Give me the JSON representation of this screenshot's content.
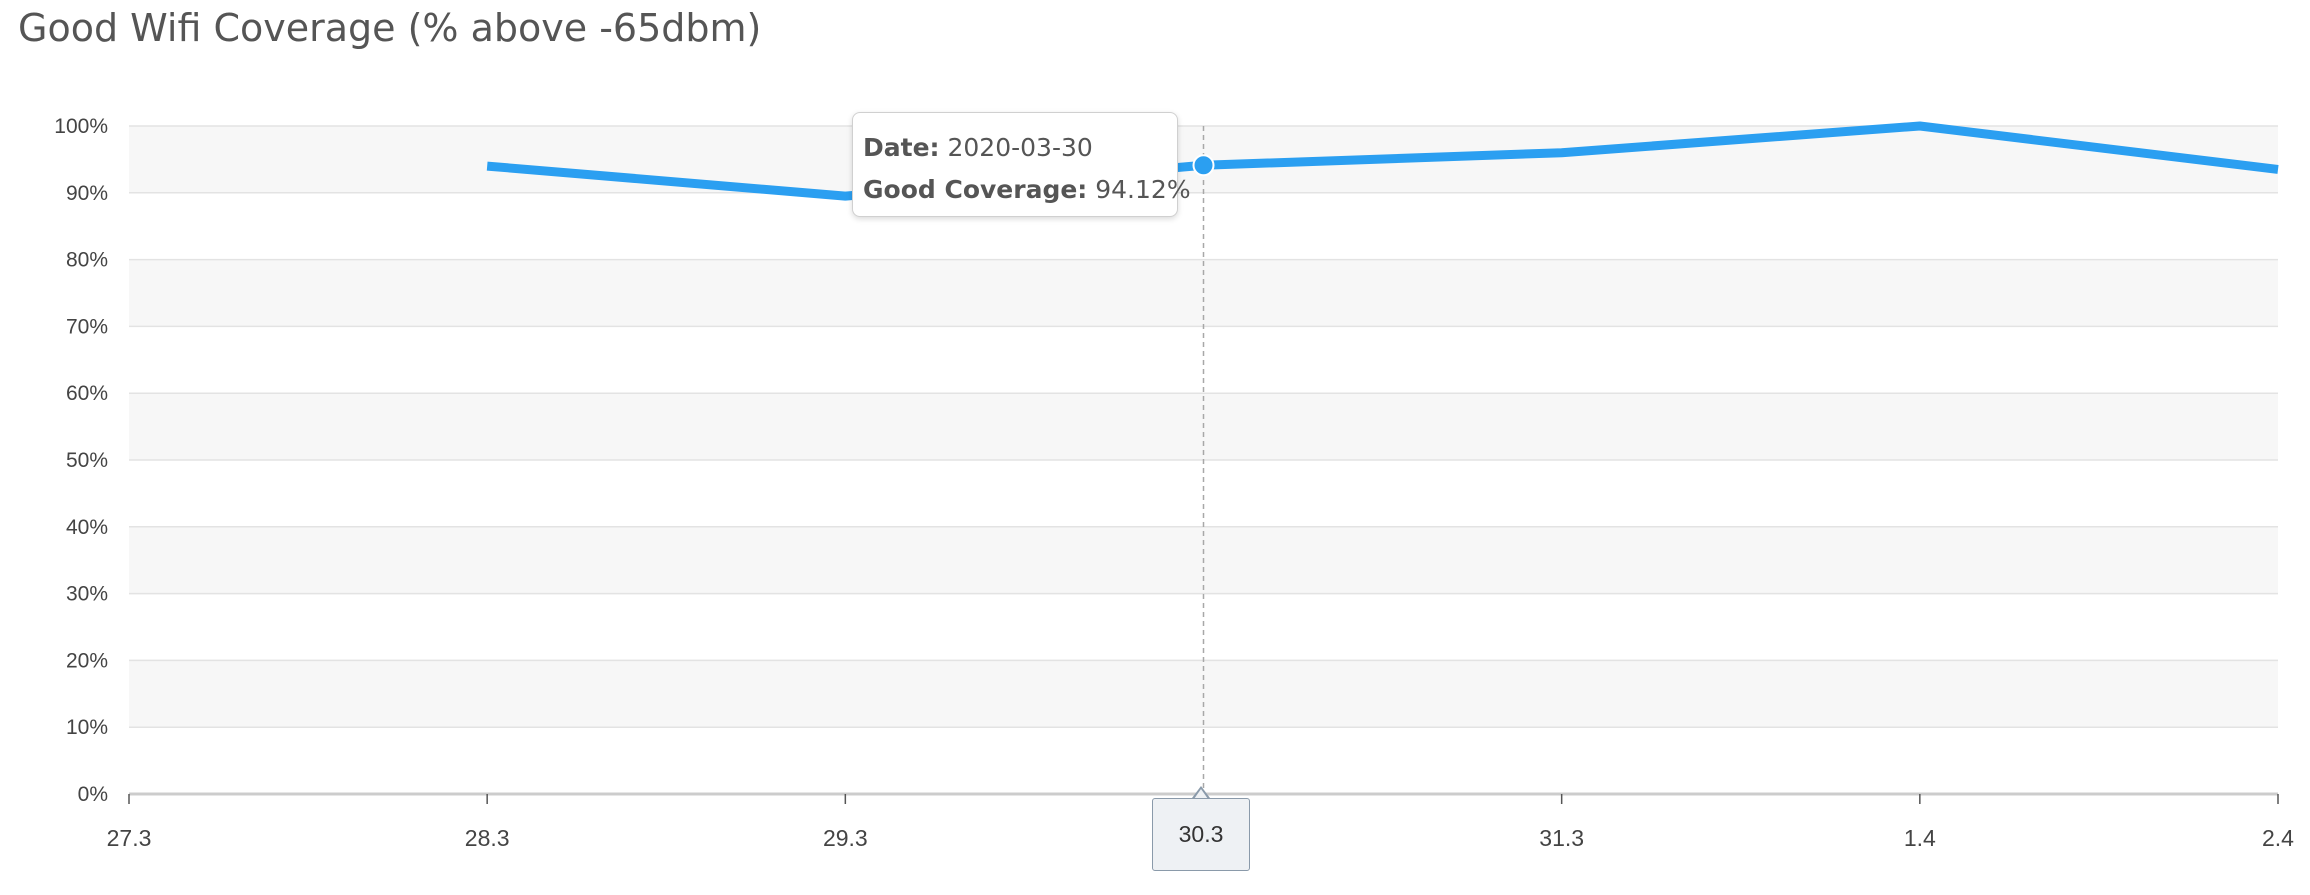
{
  "chart_data": {
    "type": "line",
    "title": "Good Wifi Coverage (% above -65dbm)",
    "x_tick_labels": [
      "27.3",
      "28.3",
      "29.3",
      "30.3",
      "31.3",
      "1.4",
      "2.4"
    ],
    "y_tick_labels": [
      "0%",
      "10%",
      "20%",
      "30%",
      "40%",
      "50%",
      "60%",
      "70%",
      "80%",
      "90%",
      "100%"
    ],
    "ylim": [
      0,
      100
    ],
    "series": [
      {
        "name": "Good Coverage",
        "color": "#2b9ff1",
        "x": [
          "28.3",
          "29.3",
          "30.3",
          "31.3",
          "1.4",
          "2.4"
        ],
        "values": [
          94,
          89.5,
          94.12,
          96,
          100,
          93.5
        ]
      }
    ],
    "grid": true,
    "banded_background": true,
    "highlighted_x": "30.3",
    "tooltip": {
      "date_label": "Date:",
      "date_value": "2020-03-30",
      "value_label": "Good Coverage:",
      "value_text": "94.12%"
    }
  }
}
